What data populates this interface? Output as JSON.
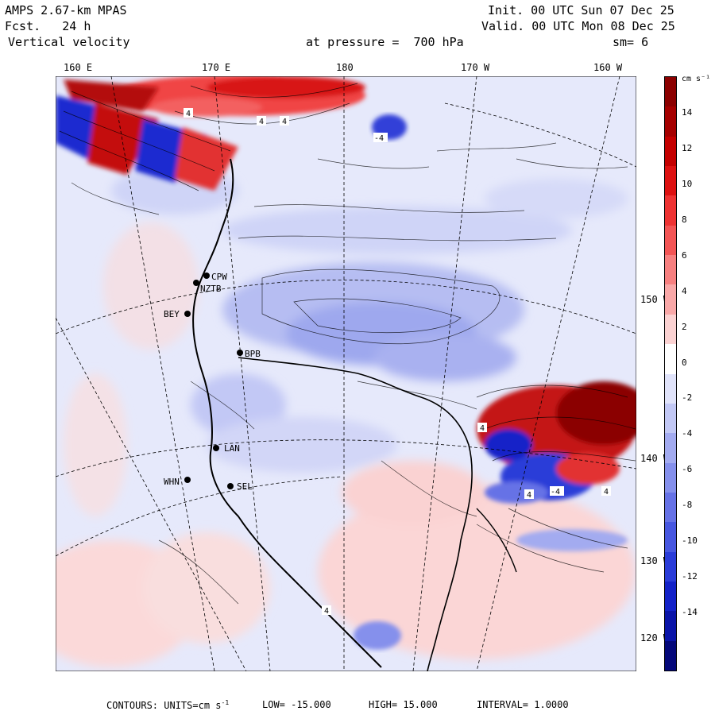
{
  "header": {
    "model": "AMPS 2.67-km MPAS",
    "forecast": "Fcst.   24 h",
    "field": "Vertical velocity",
    "init": "Init. 00 UTC Sun 07 Dec 25",
    "valid": "Valid. 00 UTC Mon 08 Dec 25",
    "pressure": "at pressure =  700 hPa",
    "smooth": "sm= 6"
  },
  "longitude_labels": [
    "160 E",
    "170 E",
    "180",
    "170 W",
    "160 W"
  ],
  "latitude_labels": [
    "150 W",
    "140 W",
    "130 W",
    "120 W"
  ],
  "stations": [
    "CPW",
    "NZTB",
    "BEY",
    "BPB",
    "LAN",
    "WHN",
    "SEL"
  ],
  "contour_labels": [
    "4",
    "-4"
  ],
  "colorbar": {
    "unit": "cm s⁻¹",
    "ticks": [
      "14",
      "12",
      "10",
      "8",
      "6",
      "4",
      "2",
      "0",
      "-2",
      "-4",
      "-6",
      "-8",
      "-10",
      "-12",
      "-14"
    ],
    "colors": [
      "#8b0000",
      "#a50000",
      "#c40000",
      "#dd1111",
      "#ee3333",
      "#f35555",
      "#f78080",
      "#f9a8a8",
      "#fbd2d2",
      "#ffffff",
      "#e0e3fa",
      "#c2c8f5",
      "#a3abf0",
      "#8590ec",
      "#6672e6",
      "#4757e0",
      "#2a3cd8",
      "#1322c8",
      "#0a14a8",
      "#04087a"
    ],
    "label_fraction": [
      0.06,
      0.12,
      0.18,
      0.24,
      0.3,
      0.36,
      0.42,
      0.48,
      0.54,
      0.6,
      0.66,
      0.72,
      0.78,
      0.84,
      0.9
    ]
  },
  "footer": {
    "contours": "CONTOURS:  UNITS=cm s",
    "sup": "-1",
    "low": "LOW= -15.000",
    "high": "HIGH=  15.000",
    "interval": "INTERVAL=  1.0000"
  }
}
